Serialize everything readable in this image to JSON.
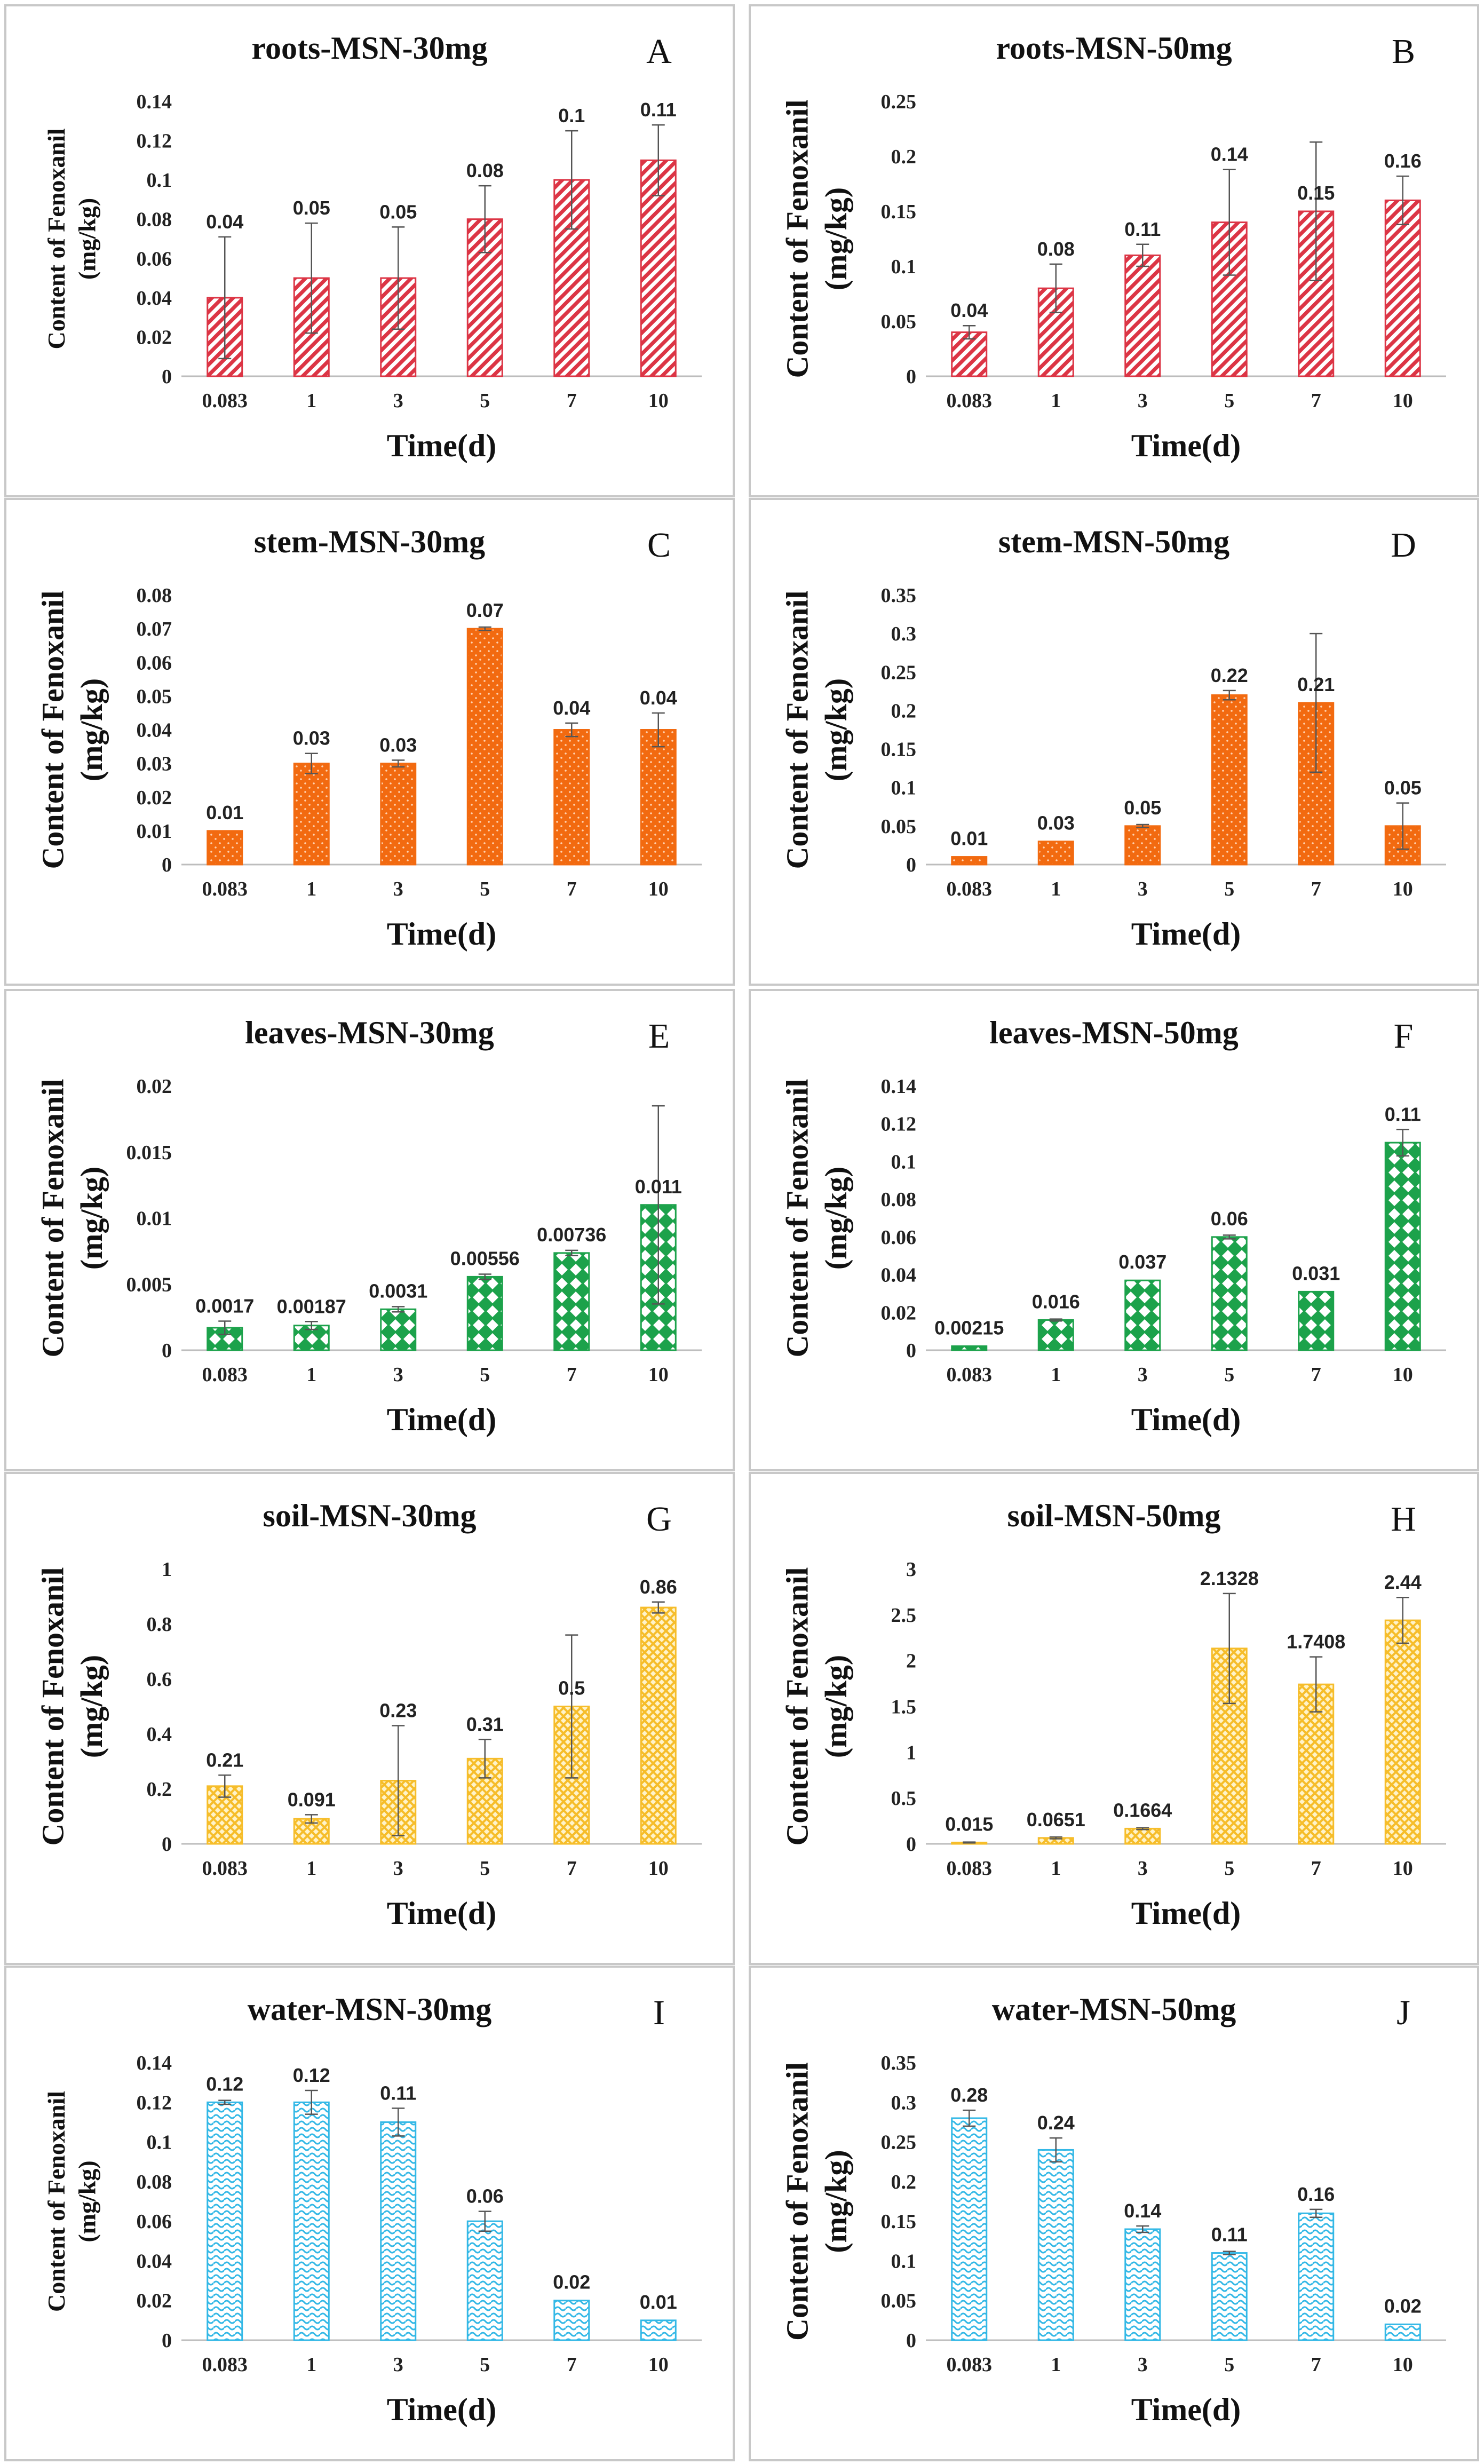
{
  "chart_data": [
    {
      "type": "bar",
      "letter": "A",
      "title": "roots-MSN-30mg",
      "ylabel_line1": "Content of Fenoxanil",
      "ylabel_line2": "(mg/kg)",
      "xlabel": "Time(d)",
      "categories": [
        "0.083",
        "1",
        "3",
        "5",
        "7",
        "10"
      ],
      "values": [
        0.04,
        0.05,
        0.05,
        0.08,
        0.1,
        0.11
      ],
      "labels": [
        "0.04",
        "0.05",
        "0.05",
        "0.08",
        "0.1",
        "0.11"
      ],
      "errors": [
        0.031,
        0.028,
        0.026,
        0.017,
        0.025,
        0.018
      ],
      "yticks": [
        "0",
        "0.02",
        "0.04",
        "0.06",
        "0.08",
        "0.1",
        "0.12",
        "0.14"
      ],
      "ylim": [
        0,
        0.14
      ],
      "color": "#dc3545",
      "pattern": "diag",
      "fill": "light",
      "ylabel_size": "small"
    },
    {
      "type": "bar",
      "letter": "B",
      "title": "roots-MSN-50mg",
      "ylabel_line1": "Content of Fenoxanil",
      "ylabel_line2": "(mg/kg)",
      "xlabel": "Time(d)",
      "categories": [
        "0.083",
        "1",
        "3",
        "5",
        "7",
        "10"
      ],
      "values": [
        0.04,
        0.08,
        0.11,
        0.14,
        0.15,
        0.16
      ],
      "labels": [
        "0.04",
        "0.08",
        "0.11",
        "0.14",
        "0.15",
        "0.16"
      ],
      "errors": [
        0.006,
        0.022,
        0.01,
        0.048,
        0.063,
        0.022
      ],
      "yticks": [
        "0",
        "0.05",
        "0.1",
        "0.15",
        "0.2",
        "0.25"
      ],
      "ylim": [
        0,
        0.25
      ],
      "color": "#dc3545",
      "pattern": "diag",
      "fill": "light",
      "ylabel_size": "large"
    },
    {
      "type": "bar",
      "letter": "C",
      "title": "stem-MSN-30mg",
      "ylabel_line1": "Content of Fenoxanil",
      "ylabel_line2": "(mg/kg)",
      "xlabel": "Time(d)",
      "categories": [
        "0.083",
        "1",
        "3",
        "5",
        "7",
        "10"
      ],
      "values": [
        0.01,
        0.03,
        0.03,
        0.07,
        0.04,
        0.04
      ],
      "labels": [
        "0.01",
        "0.03",
        "0.03",
        "0.07",
        "0.04",
        "0.04"
      ],
      "errors": [
        0,
        0.003,
        0.001,
        0.0005,
        0.002,
        0.005
      ],
      "yticks": [
        "0",
        "0.01",
        "0.02",
        "0.03",
        "0.04",
        "0.05",
        "0.06",
        "0.07",
        "0.08"
      ],
      "ylim": [
        0,
        0.08
      ],
      "color": "#f26a10",
      "pattern": "dots",
      "fill": "solid",
      "ylabel_size": "large"
    },
    {
      "type": "bar",
      "letter": "D",
      "title": "stem-MSN-50mg",
      "ylabel_line1": "Content of Fenoxanil",
      "ylabel_line2": "(mg/kg)",
      "xlabel": "Time(d)",
      "categories": [
        "0.083",
        "1",
        "3",
        "5",
        "7",
        "10"
      ],
      "values": [
        0.01,
        0.03,
        0.05,
        0.22,
        0.21,
        0.05
      ],
      "labels": [
        "0.01",
        "0.03",
        "0.05",
        "0.22",
        "0.21",
        "0.05"
      ],
      "errors": [
        0,
        0,
        0.002,
        0.006,
        0.09,
        0.03
      ],
      "yticks": [
        "0",
        "0.05",
        "0.1",
        "0.15",
        "0.2",
        "0.25",
        "0.3",
        "0.35"
      ],
      "ylim": [
        0,
        0.35
      ],
      "color": "#f26a10",
      "pattern": "dots",
      "fill": "solid",
      "ylabel_size": "large"
    },
    {
      "type": "bar",
      "letter": "E",
      "title": "leaves-MSN-30mg",
      "ylabel_line1": "Content of Fenoxanil",
      "ylabel_line2": "(mg/kg)",
      "xlabel": "Time(d)",
      "categories": [
        "0.083",
        "1",
        "3",
        "5",
        "7",
        "10"
      ],
      "values": [
        0.0017,
        0.00187,
        0.0031,
        0.00556,
        0.00736,
        0.011
      ],
      "labels": [
        "0.0017",
        "0.00187",
        "0.0031",
        "0.00556",
        "0.00736",
        "0.011"
      ],
      "errors": [
        0.0005,
        0.0003,
        0.0002,
        0.0002,
        0.0002,
        0.0075
      ],
      "yticks": [
        "0",
        "0.005",
        "0.01",
        "0.015",
        "0.02"
      ],
      "ylim": [
        0,
        0.02
      ],
      "color": "#1ca24b",
      "pattern": "diamond",
      "fill": "solid",
      "ylabel_size": "large"
    },
    {
      "type": "bar",
      "letter": "F",
      "title": "leaves-MSN-50mg",
      "ylabel_line1": "Content of Fenoxanil",
      "ylabel_line2": "(mg/kg)",
      "xlabel": "Time(d)",
      "categories": [
        "0.083",
        "1",
        "3",
        "5",
        "7",
        "10"
      ],
      "values": [
        0.00215,
        0.016,
        0.037,
        0.06,
        0.031,
        0.11
      ],
      "labels": [
        "0.00215",
        "0.016",
        "0.037",
        "0.06",
        "0.031",
        "0.11"
      ],
      "errors": [
        0,
        0.0005,
        0,
        0.001,
        0,
        0.007
      ],
      "yticks": [
        "0",
        "0.02",
        "0.04",
        "0.06",
        "0.08",
        "0.1",
        "0.12",
        "0.14"
      ],
      "ylim": [
        0,
        0.14
      ],
      "color": "#1ca24b",
      "pattern": "diamond",
      "fill": "solid",
      "ylabel_size": "large"
    },
    {
      "type": "bar",
      "letter": "G",
      "title": "soil-MSN-30mg",
      "ylabel_line1": "Content of Fenoxanil",
      "ylabel_line2": "(mg/kg)",
      "xlabel": "Time(d)",
      "categories": [
        "0.083",
        "1",
        "3",
        "5",
        "7",
        "10"
      ],
      "values": [
        0.21,
        0.091,
        0.23,
        0.31,
        0.5,
        0.86
      ],
      "labels": [
        "0.21",
        "0.091",
        "0.23",
        "0.31",
        "0.5",
        "0.86"
      ],
      "errors": [
        0.04,
        0.015,
        0.2,
        0.07,
        0.26,
        0.02
      ],
      "yticks": [
        "0",
        "0.2",
        "0.4",
        "0.6",
        "0.8",
        "1"
      ],
      "ylim": [
        0,
        1
      ],
      "color": "#f6bd2a",
      "pattern": "cross",
      "fill": "light",
      "ylabel_size": "large"
    },
    {
      "type": "bar",
      "letter": "H",
      "title": "soil-MSN-50mg",
      "ylabel_line1": "Content of Fenoxanil",
      "ylabel_line2": "(mg/kg)",
      "xlabel": "Time(d)",
      "categories": [
        "0.083",
        "1",
        "3",
        "5",
        "7",
        "10"
      ],
      "values": [
        0.015,
        0.0651,
        0.1664,
        2.1328,
        1.7408,
        2.44
      ],
      "labels": [
        "0.015",
        "0.0651",
        "0.1664",
        "2.1328",
        "1.7408",
        "2.44"
      ],
      "errors": [
        0.005,
        0.01,
        0.01,
        0.6,
        0.3,
        0.25
      ],
      "yticks": [
        "0",
        "0.5",
        "1",
        "1.5",
        "2",
        "2.5",
        "3"
      ],
      "ylim": [
        0,
        3
      ],
      "color": "#f6bd2a",
      "pattern": "cross",
      "fill": "light",
      "ylabel_size": "large"
    },
    {
      "type": "bar",
      "letter": "I",
      "title": "water-MSN-30mg",
      "ylabel_line1": "Content of Fenoxanil",
      "ylabel_line2": "(mg/kg)",
      "xlabel": "Time(d)",
      "categories": [
        "0.083",
        "1",
        "3",
        "5",
        "7",
        "10"
      ],
      "values": [
        0.12,
        0.12,
        0.11,
        0.06,
        0.02,
        0.01
      ],
      "labels": [
        "0.12",
        "0.12",
        "0.11",
        "0.06",
        "0.02",
        "0.01"
      ],
      "errors": [
        0.001,
        0.006,
        0.007,
        0.005,
        0,
        0
      ],
      "yticks": [
        "0",
        "0.02",
        "0.04",
        "0.06",
        "0.08",
        "0.1",
        "0.12",
        "0.14"
      ],
      "ylim": [
        0,
        0.14
      ],
      "color": "#33b8e6",
      "pattern": "wave",
      "fill": "light",
      "ylabel_size": "small"
    },
    {
      "type": "bar",
      "letter": "J",
      "title": "water-MSN-50mg",
      "ylabel_line1": "Content of Fenoxanil",
      "ylabel_line2": "(mg/kg)",
      "xlabel": "Time(d)",
      "categories": [
        "0.083",
        "1",
        "3",
        "5",
        "7",
        "10"
      ],
      "values": [
        0.28,
        0.24,
        0.14,
        0.11,
        0.16,
        0.02
      ],
      "labels": [
        "0.28",
        "0.24",
        "0.14",
        "0.11",
        "0.16",
        "0.02"
      ],
      "errors": [
        0.01,
        0.015,
        0.004,
        0.002,
        0.005,
        0
      ],
      "yticks": [
        "0",
        "0.05",
        "0.1",
        "0.15",
        "0.2",
        "0.25",
        "0.3",
        "0.35"
      ],
      "ylim": [
        0,
        0.35
      ],
      "color": "#33b8e6",
      "pattern": "wave",
      "fill": "light",
      "ylabel_size": "large"
    }
  ]
}
